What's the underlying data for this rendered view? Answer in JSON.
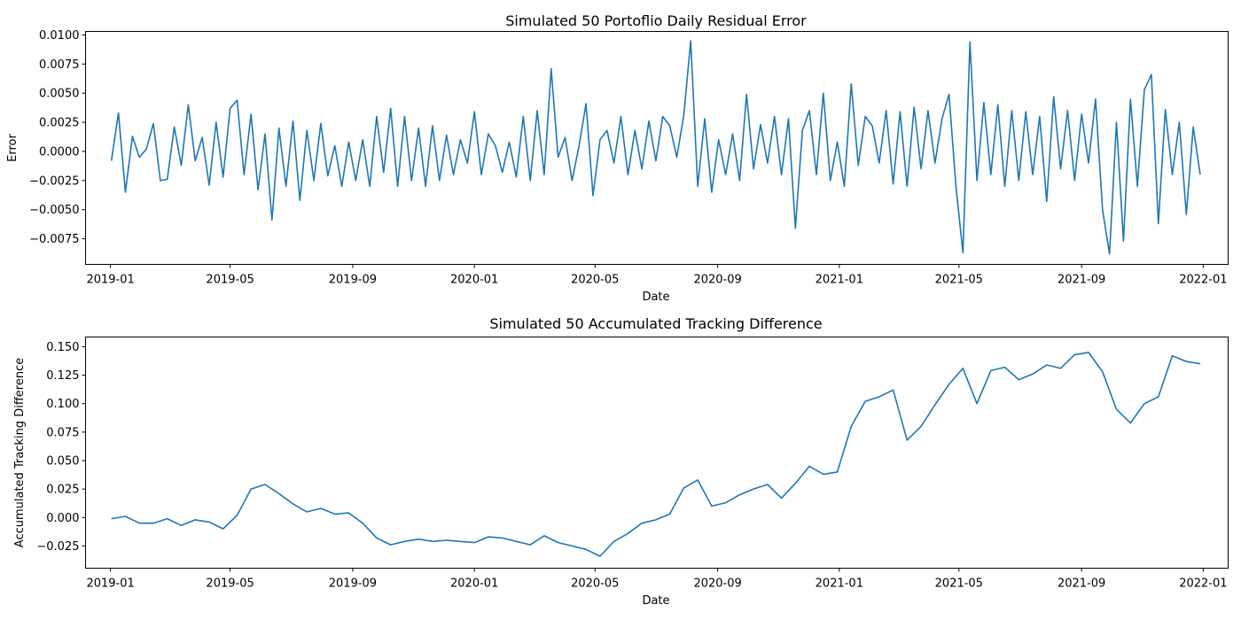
{
  "chart_data": [
    {
      "type": "line",
      "title": "Simulated 50 Portoflio Daily Residual Error",
      "xlabel": "Date",
      "ylabel": "Error",
      "x_range": [
        "2018-12-07",
        "2022-01-26"
      ],
      "ylim": [
        -0.0097,
        0.0103
      ],
      "x_ticks": [
        "2019-01",
        "2019-05",
        "2019-09",
        "2020-01",
        "2020-05",
        "2020-09",
        "2021-01",
        "2021-05",
        "2021-09",
        "2022-01"
      ],
      "y_ticks": [
        "0.0100",
        "0.0075",
        "0.0050",
        "0.0025",
        "0.0000",
        "−0.0025",
        "−0.0050",
        "−0.0075"
      ],
      "y_tick_values": [
        0.01,
        0.0075,
        0.005,
        0.0025,
        0.0,
        -0.0025,
        -0.005,
        -0.0075
      ],
      "color": "#1f77b4",
      "grid": false,
      "series": [
        {
          "x": [
            "2019-01-02",
            "2019-01-09",
            "2019-01-16",
            "2019-01-23",
            "2019-01-30",
            "2019-02-06",
            "2019-02-13",
            "2019-02-20",
            "2019-02-27",
            "2019-03-06",
            "2019-03-13",
            "2019-03-20",
            "2019-03-27",
            "2019-04-03",
            "2019-04-10",
            "2019-04-17",
            "2019-04-24",
            "2019-05-01",
            "2019-05-08",
            "2019-05-15",
            "2019-05-22",
            "2019-05-29",
            "2019-06-05",
            "2019-06-12",
            "2019-06-19",
            "2019-06-26",
            "2019-07-03",
            "2019-07-10",
            "2019-07-17",
            "2019-07-24",
            "2019-07-31",
            "2019-08-07",
            "2019-08-14",
            "2019-08-21",
            "2019-08-28",
            "2019-09-04",
            "2019-09-11",
            "2019-09-18",
            "2019-09-25",
            "2019-10-02",
            "2019-10-09",
            "2019-10-16",
            "2019-10-23",
            "2019-10-30",
            "2019-11-06",
            "2019-11-13",
            "2019-11-20",
            "2019-11-27",
            "2019-12-04",
            "2019-12-11",
            "2019-12-18",
            "2019-12-25",
            "2020-01-01",
            "2020-01-08",
            "2020-01-15",
            "2020-01-22",
            "2020-01-29",
            "2020-02-05",
            "2020-02-12",
            "2020-02-19",
            "2020-02-26",
            "2020-03-04",
            "2020-03-11",
            "2020-03-18",
            "2020-03-25",
            "2020-04-01",
            "2020-04-08",
            "2020-04-15",
            "2020-04-22",
            "2020-04-29",
            "2020-05-06",
            "2020-05-13",
            "2020-05-20",
            "2020-05-27",
            "2020-06-03",
            "2020-06-10",
            "2020-06-17",
            "2020-06-24",
            "2020-07-01",
            "2020-07-08",
            "2020-07-15",
            "2020-07-22",
            "2020-07-29",
            "2020-08-05",
            "2020-08-12",
            "2020-08-19",
            "2020-08-26",
            "2020-09-02",
            "2020-09-09",
            "2020-09-16",
            "2020-09-23",
            "2020-09-30",
            "2020-10-07",
            "2020-10-14",
            "2020-10-21",
            "2020-10-28",
            "2020-11-04",
            "2020-11-11",
            "2020-11-18",
            "2020-11-25",
            "2020-12-02",
            "2020-12-09",
            "2020-12-16",
            "2020-12-23",
            "2020-12-30",
            "2021-01-06",
            "2021-01-13",
            "2021-01-20",
            "2021-01-27",
            "2021-02-03",
            "2021-02-10",
            "2021-02-17",
            "2021-02-24",
            "2021-03-03",
            "2021-03-10",
            "2021-03-17",
            "2021-03-24",
            "2021-03-31",
            "2021-04-07",
            "2021-04-14",
            "2021-04-21",
            "2021-04-28",
            "2021-05-05",
            "2021-05-12",
            "2021-05-19",
            "2021-05-26",
            "2021-06-02",
            "2021-06-09",
            "2021-06-16",
            "2021-06-23",
            "2021-06-30",
            "2021-07-07",
            "2021-07-14",
            "2021-07-21",
            "2021-07-28",
            "2021-08-04",
            "2021-08-11",
            "2021-08-18",
            "2021-08-25",
            "2021-09-01",
            "2021-09-08",
            "2021-09-15",
            "2021-09-22",
            "2021-09-29",
            "2021-10-06",
            "2021-10-13",
            "2021-10-20",
            "2021-10-27",
            "2021-11-03",
            "2021-11-10",
            "2021-11-17",
            "2021-11-24",
            "2021-12-01",
            "2021-12-08",
            "2021-12-15",
            "2021-12-22",
            "2021-12-29"
          ],
          "y": [
            -0.0008,
            0.0033,
            -0.0035,
            0.0013,
            -0.0005,
            0.0002,
            0.0024,
            -0.0025,
            -0.0024,
            0.0021,
            -0.0012,
            0.004,
            -0.0008,
            0.0012,
            -0.0029,
            0.0025,
            -0.0022,
            0.0037,
            0.0044,
            -0.002,
            0.0032,
            -0.0033,
            0.0015,
            -0.0059,
            0.002,
            -0.003,
            0.0026,
            -0.0042,
            0.0018,
            -0.0025,
            0.0024,
            -0.0021,
            0.0005,
            -0.003,
            0.0008,
            -0.0025,
            0.001,
            -0.003,
            0.003,
            -0.0018,
            0.0037,
            -0.003,
            0.003,
            -0.0025,
            0.002,
            -0.003,
            0.0022,
            -0.0025,
            0.0014,
            -0.002,
            0.001,
            -0.001,
            0.0034,
            -0.002,
            0.0015,
            0.0005,
            -0.0018,
            0.0008,
            -0.0022,
            0.003,
            -0.0025,
            0.0035,
            -0.002,
            0.0071,
            -0.0005,
            0.0012,
            -0.0025,
            0.0005,
            0.0041,
            -0.0038,
            0.001,
            0.0018,
            -0.001,
            0.003,
            -0.002,
            0.0018,
            -0.0015,
            0.0026,
            -0.0008,
            0.003,
            0.0022,
            -0.0005,
            0.0031,
            0.0095,
            -0.003,
            0.0028,
            -0.0035,
            0.001,
            -0.002,
            0.0015,
            -0.0025,
            0.0049,
            -0.0015,
            0.0023,
            -0.001,
            0.003,
            -0.002,
            0.0028,
            -0.0066,
            0.0018,
            0.0035,
            -0.002,
            0.005,
            -0.0025,
            0.0008,
            -0.003,
            0.0058,
            -0.0012,
            0.003,
            0.0022,
            -0.001,
            0.0035,
            -0.0028,
            0.0034,
            -0.003,
            0.0038,
            -0.0015,
            0.0035,
            -0.001,
            0.0028,
            0.0049,
            -0.003,
            -0.0087,
            0.0094,
            -0.0025,
            0.0042,
            -0.002,
            0.004,
            -0.003,
            0.0035,
            -0.0025,
            0.0034,
            -0.002,
            0.003,
            -0.0043,
            0.0047,
            -0.0015,
            0.0035,
            -0.0025,
            0.0032,
            -0.001,
            0.0045,
            -0.005,
            -0.0088,
            0.0025,
            -0.0077,
            0.0045,
            -0.003,
            0.0053,
            0.0066,
            -0.0062,
            0.0036,
            -0.002,
            0.0025,
            -0.0054,
            0.0021,
            -0.002
          ]
        }
      ]
    },
    {
      "type": "line",
      "title": "Simulated 50 Accumulated Tracking Difference",
      "xlabel": "Date",
      "ylabel": "Accumulated Tracking Difference",
      "x_range": [
        "2018-12-07",
        "2022-01-26"
      ],
      "ylim": [
        -0.0445,
        0.1585
      ],
      "x_ticks": [
        "2019-01",
        "2019-05",
        "2019-09",
        "2020-01",
        "2020-05",
        "2020-09",
        "2021-01",
        "2021-05",
        "2021-09",
        "2022-01"
      ],
      "y_ticks": [
        "0.150",
        "0.125",
        "0.100",
        "0.075",
        "0.050",
        "0.025",
        "0.000",
        "−0.025"
      ],
      "y_tick_values": [
        0.15,
        0.125,
        0.1,
        0.075,
        0.05,
        0.025,
        0.0,
        -0.025
      ],
      "color": "#1f77b4",
      "grid": false,
      "series": [
        {
          "x": [
            "2019-01-02",
            "2019-01-16",
            "2019-01-30",
            "2019-02-13",
            "2019-02-27",
            "2019-03-13",
            "2019-03-27",
            "2019-04-10",
            "2019-04-24",
            "2019-05-08",
            "2019-05-22",
            "2019-06-05",
            "2019-06-19",
            "2019-07-03",
            "2019-07-17",
            "2019-07-31",
            "2019-08-14",
            "2019-08-28",
            "2019-09-11",
            "2019-09-25",
            "2019-10-09",
            "2019-10-23",
            "2019-11-06",
            "2019-11-20",
            "2019-12-04",
            "2019-12-18",
            "2020-01-01",
            "2020-01-15",
            "2020-01-29",
            "2020-02-12",
            "2020-02-26",
            "2020-03-11",
            "2020-03-25",
            "2020-04-08",
            "2020-04-22",
            "2020-05-06",
            "2020-05-20",
            "2020-06-03",
            "2020-06-17",
            "2020-07-01",
            "2020-07-15",
            "2020-07-29",
            "2020-08-12",
            "2020-08-26",
            "2020-09-09",
            "2020-09-23",
            "2020-10-07",
            "2020-10-21",
            "2020-11-04",
            "2020-11-18",
            "2020-12-02",
            "2020-12-16",
            "2020-12-30",
            "2021-01-13",
            "2021-01-27",
            "2021-02-10",
            "2021-02-24",
            "2021-03-10",
            "2021-03-24",
            "2021-04-07",
            "2021-04-21",
            "2021-05-05",
            "2021-05-19",
            "2021-06-02",
            "2021-06-16",
            "2021-06-30",
            "2021-07-14",
            "2021-07-28",
            "2021-08-11",
            "2021-08-25",
            "2021-09-08",
            "2021-09-22",
            "2021-10-06",
            "2021-10-20",
            "2021-11-03",
            "2021-11-17",
            "2021-12-01",
            "2021-12-15",
            "2021-12-29"
          ],
          "y": [
            -0.001,
            0.001,
            -0.005,
            -0.005,
            -0.001,
            -0.007,
            -0.002,
            -0.004,
            -0.01,
            0.002,
            0.025,
            0.029,
            0.021,
            0.012,
            0.005,
            0.008,
            0.003,
            0.004,
            -0.005,
            -0.018,
            -0.024,
            -0.021,
            -0.019,
            -0.021,
            -0.02,
            -0.021,
            -0.022,
            -0.017,
            -0.018,
            -0.021,
            -0.024,
            -0.016,
            -0.022,
            -0.025,
            -0.028,
            -0.034,
            -0.021,
            -0.014,
            -0.005,
            -0.002,
            0.003,
            0.026,
            0.033,
            0.01,
            0.013,
            0.02,
            0.025,
            0.029,
            0.017,
            0.03,
            0.045,
            0.038,
            0.04,
            0.08,
            0.102,
            0.106,
            0.112,
            0.068,
            0.08,
            0.099,
            0.117,
            0.131,
            0.1,
            0.129,
            0.132,
            0.121,
            0.126,
            0.134,
            0.131,
            0.143,
            0.145,
            0.128,
            0.095,
            0.083,
            0.1,
            0.106,
            0.142,
            0.137,
            0.135
          ]
        }
      ]
    }
  ]
}
